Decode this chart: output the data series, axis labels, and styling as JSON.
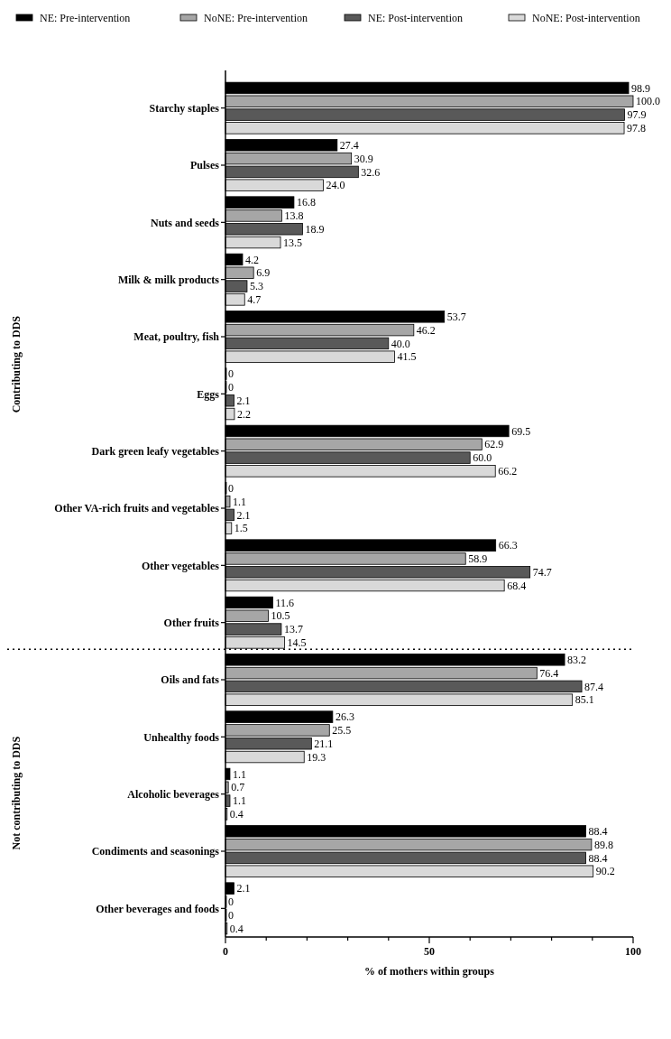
{
  "chart_data": {
    "type": "bar",
    "orientation": "horizontal",
    "xlabel": "% of mothers within groups",
    "categories": [
      "Starchy staples",
      "Pulses",
      "Nuts and seeds",
      "Milk & milk products",
      "Meat, poultry, fish",
      "Eggs",
      "Dark green leafy vegetables",
      "Other VA-rich fruits and vegetables",
      "Other vegetables",
      "Other fruits",
      "Oils and fats",
      "Unhealthy foods",
      "Alcoholic beverages",
      "Condiments and seasonings",
      "Other beverages and foods"
    ],
    "series": [
      {
        "name": "NE: Pre-intervention",
        "color": "#000000",
        "values": [
          98.9,
          27.4,
          16.8,
          4.2,
          53.7,
          0,
          69.5,
          0,
          66.3,
          11.6,
          83.2,
          26.3,
          1.1,
          88.4,
          2.1
        ],
        "value_labels": [
          "98.9",
          "27.4",
          "16.8",
          "4.2",
          "53.7",
          "0",
          "69.5",
          "0",
          "66.3",
          "11.6",
          "83.2",
          "26.3",
          "1.1",
          "88.4",
          "2.1"
        ]
      },
      {
        "name": "NoNE: Pre-intervention",
        "color": "#a6a6a6",
        "values": [
          100.0,
          30.9,
          13.8,
          6.9,
          46.2,
          0,
          62.9,
          1.1,
          58.9,
          10.5,
          76.4,
          25.5,
          0.7,
          89.8,
          0
        ],
        "value_labels": [
          "100.0",
          "30.9",
          "13.8",
          "6.9",
          "46.2",
          "0",
          "62.9",
          "1.1",
          "58.9",
          "10.5",
          "76.4",
          "25.5",
          "0.7",
          "89.8",
          "0"
        ]
      },
      {
        "name": "NE: Post-intervention",
        "color": "#595959",
        "values": [
          97.9,
          32.6,
          18.9,
          5.3,
          40.0,
          2.1,
          60.0,
          2.1,
          74.7,
          13.7,
          87.4,
          21.1,
          1.1,
          88.4,
          0
        ],
        "value_labels": [
          "97.9",
          "32.6",
          "18.9",
          "5.3",
          "40.0",
          "2.1",
          "60.0",
          "2.1",
          "74.7",
          "13.7",
          "87.4",
          "21.1",
          "1.1",
          "88.4",
          "0"
        ]
      },
      {
        "name": "NoNE: Post-intervention",
        "color": "#d9d9d9",
        "values": [
          97.8,
          24.0,
          13.5,
          4.7,
          41.5,
          2.2,
          66.2,
          1.5,
          68.4,
          14.5,
          85.1,
          19.3,
          0.4,
          90.2,
          0.4
        ],
        "value_labels": [
          "97.8",
          "24.0",
          "13.5",
          "4.7",
          "41.5",
          "2.2",
          "66.2",
          "1.5",
          "68.4",
          "14.5",
          "85.1",
          "19.3",
          "0.4",
          "90.2",
          "0.4"
        ]
      }
    ],
    "xlim": [
      0,
      100
    ],
    "xticks": [
      0,
      {
        "value": 10,
        "label": null
      },
      {
        "value": 20,
        "label": null
      },
      {
        "value": 30,
        "label": null
      },
      {
        "value": 40,
        "label": null
      },
      50,
      {
        "value": 60,
        "label": null
      },
      {
        "value": 70,
        "label": null
      },
      {
        "value": 80,
        "label": null
      },
      {
        "value": 90,
        "label": null
      },
      100
    ],
    "legend": "top",
    "annotations": [
      "Contributing to DDS",
      "Not contributing to DDS"
    ]
  }
}
